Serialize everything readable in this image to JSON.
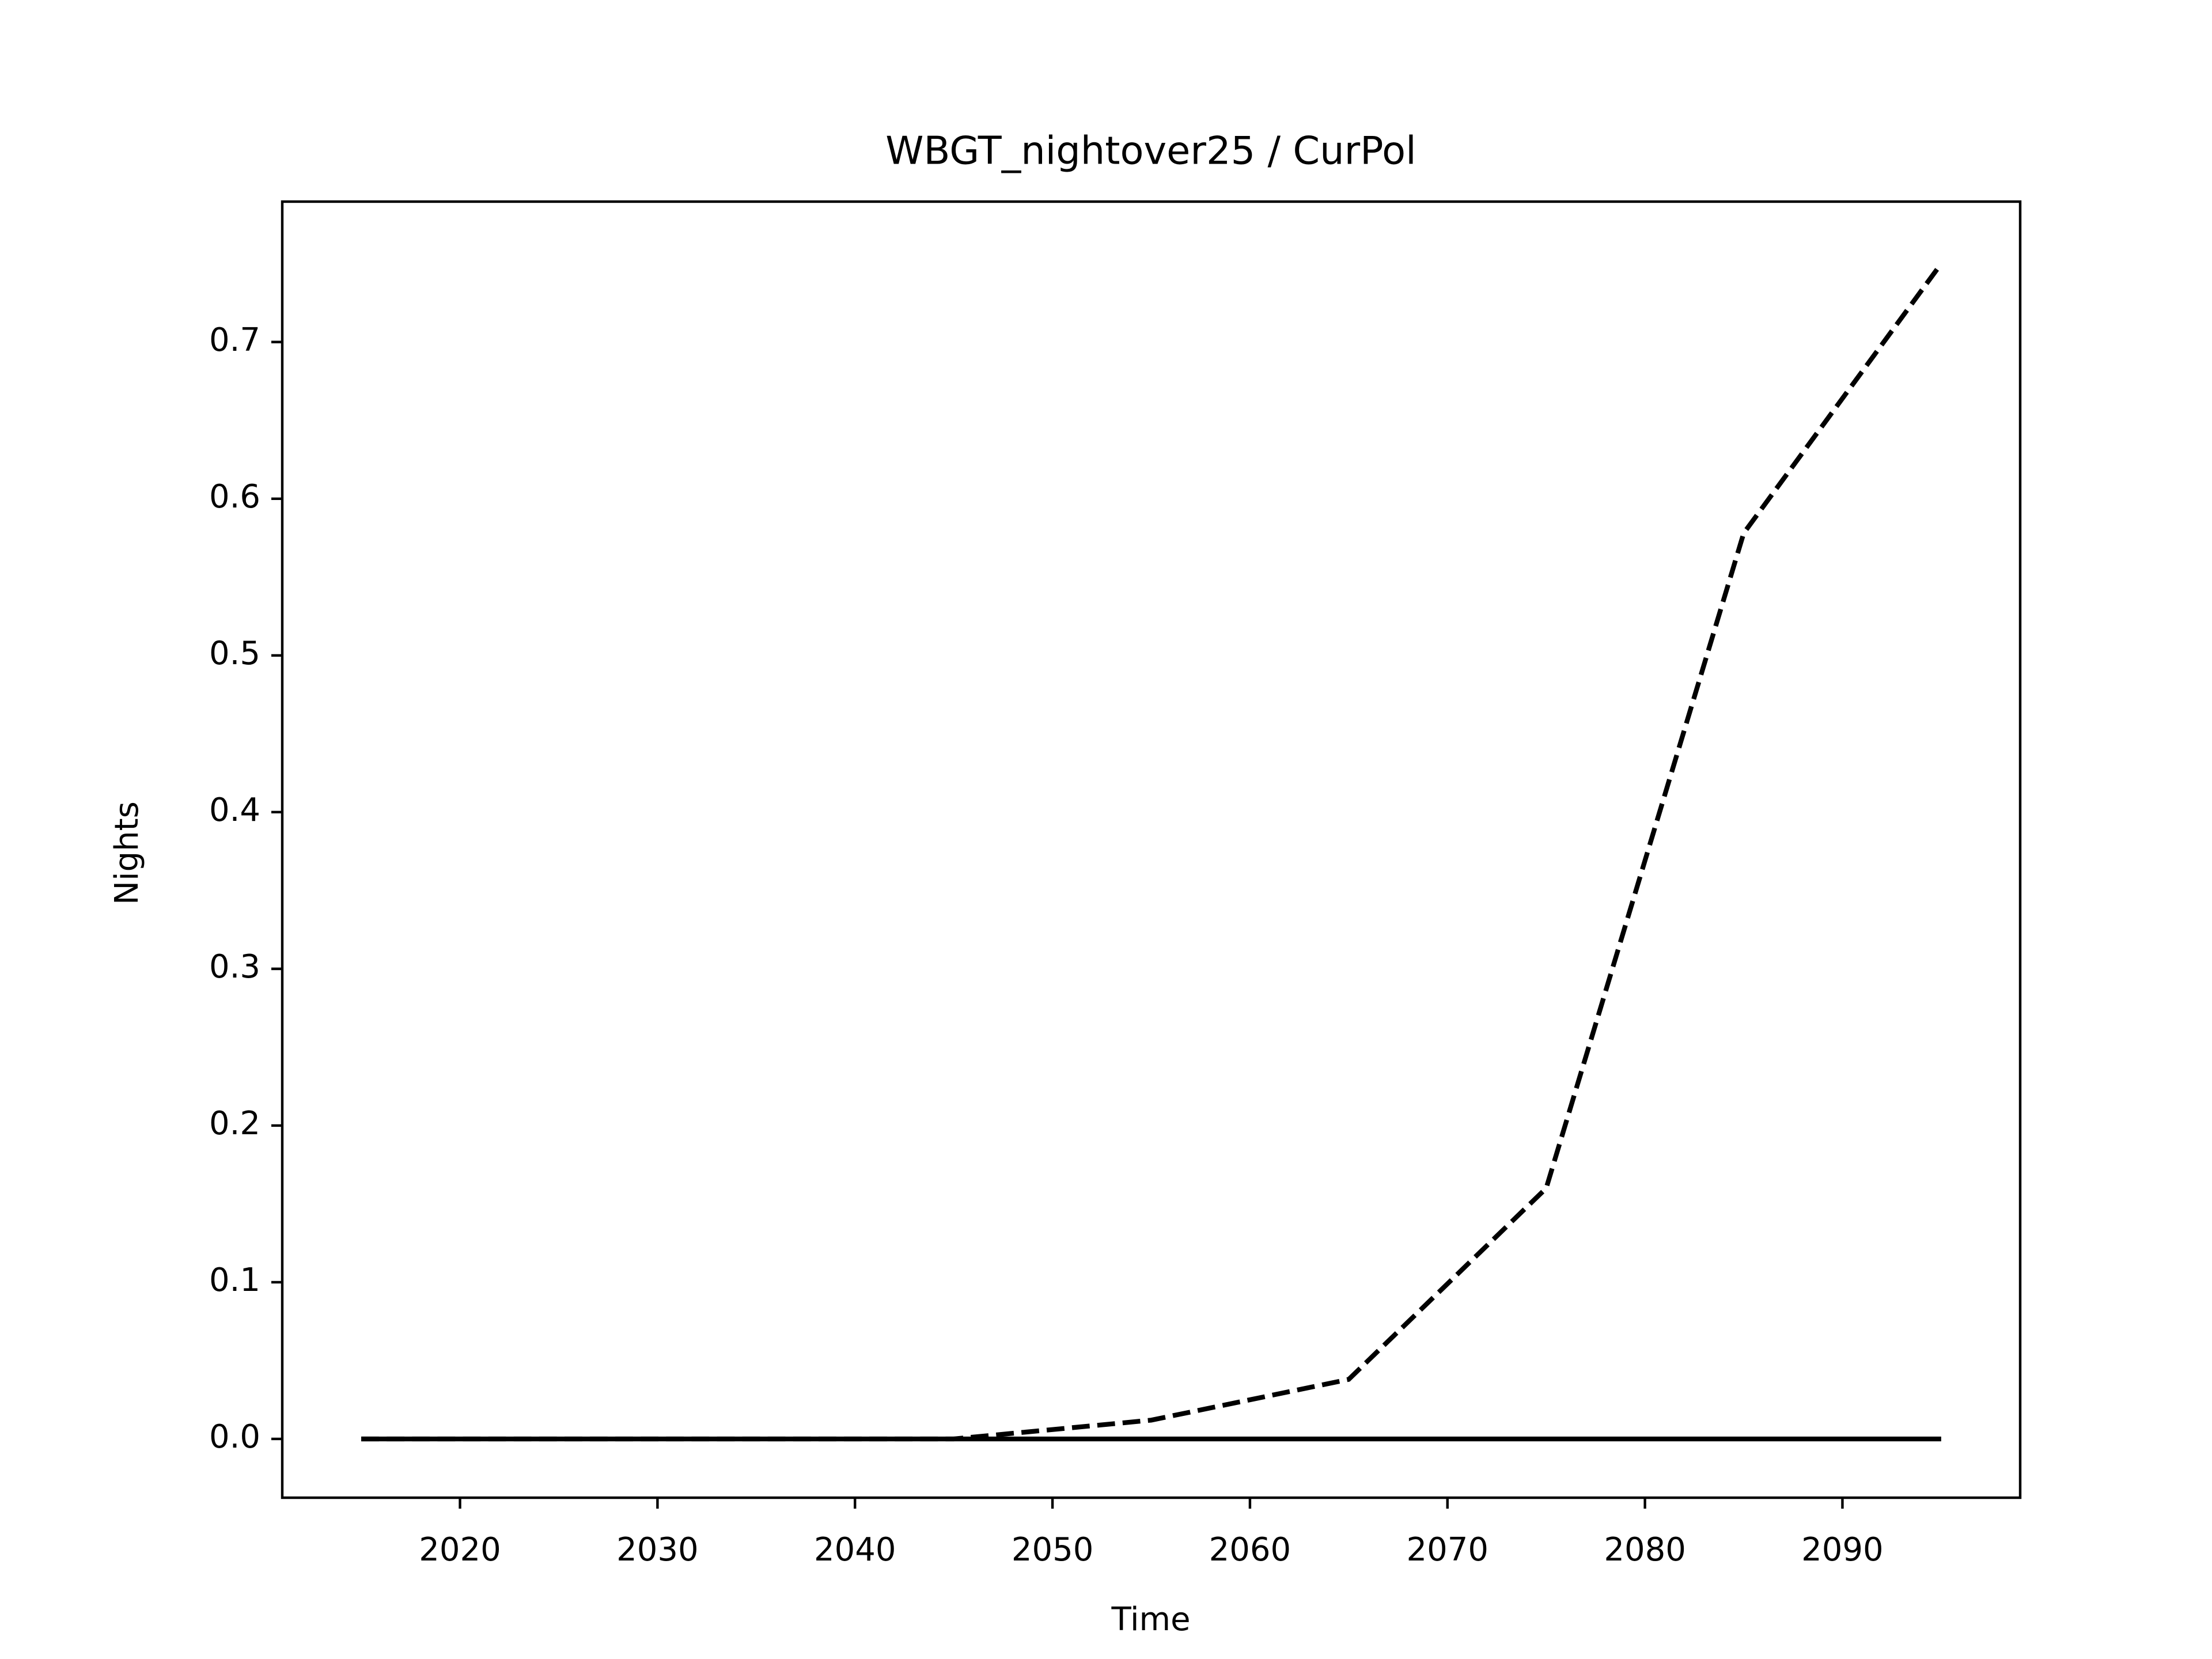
{
  "chart_data": {
    "type": "line",
    "title": "WBGT_nightover25 / CurPol",
    "xlabel": "Time",
    "ylabel": "Nights",
    "x": [
      2015,
      2025,
      2035,
      2045,
      2055,
      2065,
      2075,
      2085,
      2095
    ],
    "series": [
      {
        "color": "#000000",
        "dashed": true,
        "values": [
          0,
          0,
          0,
          0,
          0.012,
          0.038,
          0.16,
          0.578,
          0.75
        ]
      },
      {
        "color": "#000000",
        "dashed": false,
        "values": [
          0,
          0,
          0,
          0,
          0,
          0,
          0,
          0,
          0
        ]
      }
    ],
    "xlim": [
      2011,
      2099
    ],
    "ylim": [
      -0.0375,
      0.7896
    ],
    "xticks": [
      2020,
      2030,
      2040,
      2050,
      2060,
      2070,
      2080,
      2090
    ],
    "yticks": [
      {
        "value": 0,
        "label": "0.0"
      },
      0.1,
      0.2,
      0.3,
      0.4,
      0.5,
      0.6,
      0.7
    ],
    "grid": false
  }
}
